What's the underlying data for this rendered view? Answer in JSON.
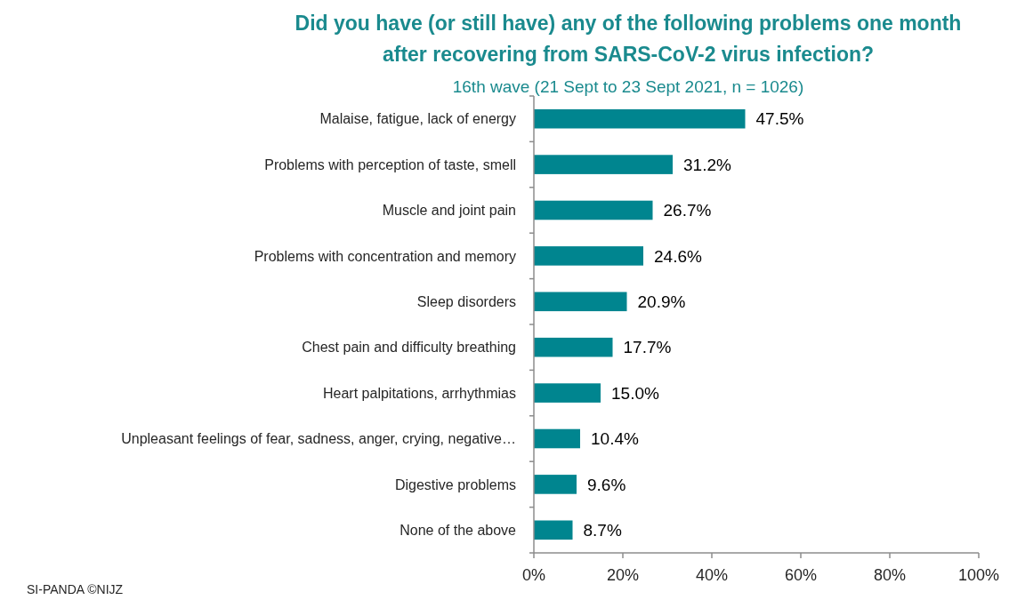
{
  "chart_data": {
    "type": "bar",
    "orientation": "horizontal",
    "title": "Did you have (or still have) any of the following problems one month after recovering from SARS-CoV-2 virus infection?",
    "subtitle": "16th wave (21 Sept to 23 Sept 2021, n = 1026)",
    "categories": [
      "Malaise, fatigue, lack of energy",
      "Problems with perception of taste, smell",
      "Muscle and joint pain",
      "Problems with concentration and memory",
      "Sleep disorders",
      "Chest pain and difficulty breathing",
      "Heart palpitations, arrhythmias",
      "Unpleasant feelings of fear, sadness, anger, crying, negative…",
      "Digestive problems",
      "None of the above"
    ],
    "values": [
      47.5,
      31.2,
      26.7,
      24.6,
      20.9,
      17.7,
      15.0,
      10.4,
      9.6,
      8.7
    ],
    "value_labels": [
      "47.5%",
      "31.2%",
      "26.7%",
      "24.6%",
      "20.9%",
      "17.7%",
      "15.0%",
      "10.4%",
      "9.6%",
      "8.7%"
    ],
    "color": "#00858f",
    "xlim": [
      0,
      100
    ],
    "xticks": [
      {
        "value": 0,
        "label": "0%"
      },
      {
        "value": 20,
        "label": "20%"
      },
      {
        "value": 40,
        "label": "40%"
      },
      {
        "value": 60,
        "label": "60%"
      },
      {
        "value": 80,
        "label": "80%"
      },
      {
        "value": 100,
        "label": "100%"
      }
    ],
    "annotations": [
      "SI-PANDA ©NIJZ"
    ]
  }
}
